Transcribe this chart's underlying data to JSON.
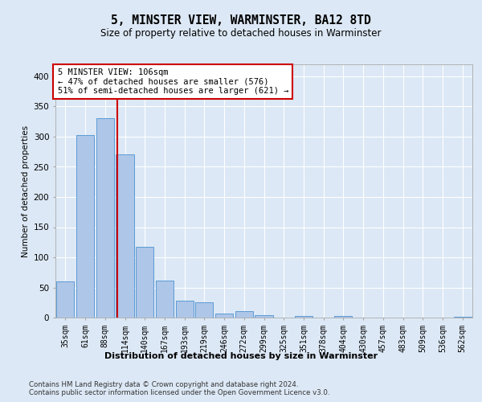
{
  "title1": "5, MINSTER VIEW, WARMINSTER, BA12 8TD",
  "title2": "Size of property relative to detached houses in Warminster",
  "xlabel": "Distribution of detached houses by size in Warminster",
  "ylabel": "Number of detached properties",
  "bin_labels": [
    "35sqm",
    "61sqm",
    "88sqm",
    "114sqm",
    "140sqm",
    "167sqm",
    "193sqm",
    "219sqm",
    "246sqm",
    "272sqm",
    "299sqm",
    "325sqm",
    "351sqm",
    "378sqm",
    "404sqm",
    "430sqm",
    "457sqm",
    "483sqm",
    "509sqm",
    "536sqm",
    "562sqm"
  ],
  "bar_heights": [
    60,
    303,
    330,
    270,
    118,
    62,
    28,
    25,
    7,
    11,
    4,
    0,
    3,
    0,
    3,
    0,
    0,
    0,
    0,
    0,
    2
  ],
  "bar_color": "#aec6e8",
  "bar_edge_color": "#5b9bd5",
  "vline_x": 2.62,
  "vline_color": "#cc0000",
  "annotation_text": "5 MINSTER VIEW: 106sqm\n← 47% of detached houses are smaller (576)\n51% of semi-detached houses are larger (621) →",
  "annotation_box_color": "#ffffff",
  "annotation_box_edge": "#cc0000",
  "annotation_fontsize": 7.5,
  "background_color": "#dce8f5",
  "plot_bg_color": "#dce8f5",
  "ylim": [
    0,
    420
  ],
  "yticks": [
    0,
    50,
    100,
    150,
    200,
    250,
    300,
    350,
    400
  ],
  "footnote": "Contains HM Land Registry data © Crown copyright and database right 2024.\nContains public sector information licensed under the Open Government Licence v3.0.",
  "title1_fontsize": 10.5,
  "title2_fontsize": 8.5,
  "xlabel_fontsize": 8,
  "ylabel_fontsize": 7.5,
  "footnote_fontsize": 6.2,
  "tick_fontsize": 7,
  "ytick_fontsize": 7.5
}
